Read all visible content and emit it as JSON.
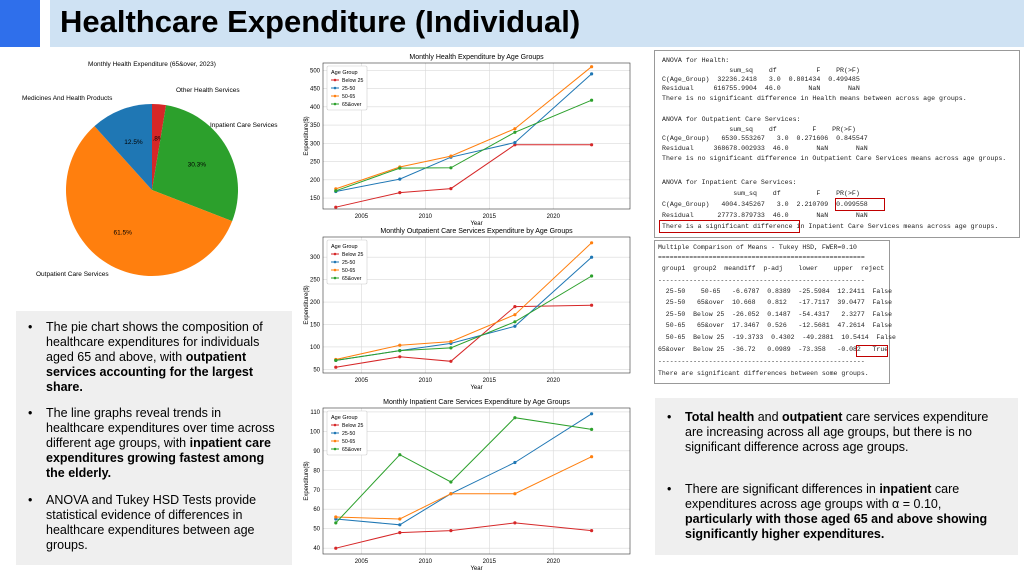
{
  "title": "Healthcare Expenditure (Individual)",
  "colors": {
    "below25": "#d62728",
    "r25_50": "#1f77b4",
    "r50_65": "#ff7f0e",
    "r65over": "#2ca02c",
    "accent": "#2F6FEB",
    "title_bg": "#cfe2f3",
    "highlight": "#c00000"
  },
  "pie": {
    "title": "Monthly Health Expenditure (65&over, 2023)",
    "labels": [
      "Other Health Services",
      "Inpatient Care Services",
      "Outpatient Care Services",
      "Medicines And Health Products"
    ],
    "percents": [
      "2.8%",
      "30.3%",
      "61.5%",
      "12.5%"
    ]
  },
  "chart_data": [
    {
      "type": "pie",
      "title": "Monthly Health Expenditure (65&over, 2023)",
      "labels": [
        "Other Health Services",
        "Inpatient Care Services",
        "Outpatient Care Services",
        "Medicines And Health Products"
      ],
      "values": [
        2.8,
        30.3,
        61.5,
        12.5
      ],
      "colors": [
        "#d62728",
        "#2ca02c",
        "#ff7f0e",
        "#1f77b4"
      ]
    },
    {
      "type": "line",
      "title": "Monthly Health Expenditure by Age Groups",
      "xlabel": "Year",
      "ylabel": "Expenditure($)",
      "legend_title": "Age Group",
      "legend": "top-left",
      "x": [
        2003,
        2008,
        2012,
        2017,
        2023
      ],
      "xlim": [
        2002,
        2026
      ],
      "ylim": [
        120,
        520
      ],
      "xticks": [
        2005,
        2010,
        2015,
        2020
      ],
      "yticks": [
        150,
        200,
        250,
        300,
        350,
        400,
        450,
        500
      ],
      "series": [
        {
          "name": "Below 25",
          "values": [
            125,
            165,
            176,
            296,
            296
          ]
        },
        {
          "name": "25-50",
          "values": [
            168,
            202,
            262,
            302,
            490
          ]
        },
        {
          "name": "50-65",
          "values": [
            175,
            235,
            265,
            340,
            510
          ]
        },
        {
          "name": "65&over",
          "values": [
            170,
            232,
            233,
            330,
            418
          ]
        }
      ]
    },
    {
      "type": "line",
      "title": "Monthly Outpatient Care Services Expenditure by Age Groups",
      "xlabel": "Year",
      "ylabel": "Expenditure($)",
      "legend_title": "Age Group",
      "legend": "top-left",
      "x": [
        2003,
        2008,
        2012,
        2017,
        2023
      ],
      "xlim": [
        2002,
        2026
      ],
      "ylim": [
        42,
        345
      ],
      "xticks": [
        2005,
        2010,
        2015,
        2020
      ],
      "yticks": [
        50,
        100,
        150,
        200,
        250,
        300
      ],
      "series": [
        {
          "name": "Below 25",
          "values": [
            55,
            78,
            68,
            190,
            193
          ]
        },
        {
          "name": "25-50",
          "values": [
            70,
            92,
            108,
            146,
            300
          ]
        },
        {
          "name": "50-65",
          "values": [
            72,
            104,
            112,
            172,
            332
          ]
        },
        {
          "name": "65&over",
          "values": [
            70,
            92,
            98,
            156,
            258
          ]
        }
      ]
    },
    {
      "type": "line",
      "title": "Monthly Inpatient Care Services Expenditure by Age Groups",
      "xlabel": "Year",
      "ylabel": "Expenditure($)",
      "legend_title": "Age Group",
      "legend": "top-left",
      "x": [
        2003,
        2008,
        2012,
        2017,
        2023
      ],
      "xlim": [
        2002,
        2026
      ],
      "ylim": [
        37,
        112
      ],
      "xticks": [
        2005,
        2010,
        2015,
        2020
      ],
      "yticks": [
        40,
        50,
        60,
        70,
        80,
        90,
        100,
        110
      ],
      "series": [
        {
          "name": "Below 25",
          "values": [
            40,
            48,
            49,
            53,
            49
          ]
        },
        {
          "name": "25-50",
          "values": [
            55,
            52,
            68,
            84,
            109
          ]
        },
        {
          "name": "50-65",
          "values": [
            56,
            55,
            68,
            68,
            87
          ]
        },
        {
          "name": "65&over",
          "values": [
            53,
            88,
            74,
            107,
            101
          ]
        }
      ]
    }
  ],
  "anova": {
    "lines": [
      "ANOVA for Health:",
      "                 sum_sq    df          F    PR(>F)",
      "C(Age_Group)  32236.2418   3.0  0.801434  0.499485",
      "Residual     616755.9904  46.0       NaN       NaN",
      "There is no significant difference in Health means between across age groups.",
      "",
      "ANOVA for Outpatient Care Services:",
      "                 sum_sq    df         F    PR(>F)",
      "C(Age_Group)   6530.553267   3.0  0.271606  0.845547",
      "Residual     368678.002933  46.0       NaN       NaN",
      "There is no significant difference in Outpatient Care Services means across age groups.",
      "",
      "ANOVA for Inpatient Care Services:",
      "                  sum_sq    df         F    PR(>F)",
      "C(Age_Group)   4004.345267   3.0  2.210709  0.099558",
      "Residual      27773.879733  46.0       NaN       NaN",
      "There is a significant difference in Inpatient Care Services means across age groups."
    ]
  },
  "tukey": {
    "lines": [
      "Multiple Comparison of Means - Tukey HSD, FWER=0.10",
      "=====================================================",
      " group1  group2  meandiff  p-adj    lower    upper  reject",
      "-----------------------------------------------------",
      "  25-50    50-65   -6.6787  0.8389  -25.5984  12.2411  False",
      "  25-50   65&over  10.668   0.812   -17.7117  39.0477  False",
      "  25-50  Below 25  -26.052  0.1487  -54.4317   2.3277  False",
      "  50-65   65&over  17.3467  0.526   -12.5681  47.2614  False",
      "  50-65  Below 25  -19.3733  0.4302  -49.2881  10.5414  False",
      "65&over  Below 25  -36.72   0.0989  -73.358   -0.082   True",
      "-----------------------------------------------------",
      "There are significant differences between some groups."
    ]
  },
  "left_text": [
    {
      "pre": "The pie chart shows the composition of healthcare expenditures for individuals aged 65 and above, with ",
      "bold": "outpatient services accounting for the largest share.",
      "post": ""
    },
    {
      "pre": "The line graphs reveal trends in healthcare expenditures over time across different age groups, with ",
      "bold": "inpatient care expenditures growing fastest among the elderly.",
      "post": ""
    },
    {
      "pre": "ANOVA and Tukey HSD Tests provide statistical evidence of differences in healthcare expenditures between age groups.",
      "bold": "",
      "post": ""
    }
  ],
  "right_text": [
    {
      "b1": "Total health",
      "m1": " and ",
      "b2": "outpatient",
      "m2": " care services expenditure are increasing across all age groups, but there is no significant difference across age groups.",
      "b3": ""
    },
    {
      "b1": "",
      "m1": "There are significant differences in ",
      "b2": "inpatient",
      "m2": " care expenditures across age groups with α = 0.10, ",
      "b3": "particularly with those aged 65 and above showing significantly higher expenditures."
    }
  ],
  "bullet": "•"
}
